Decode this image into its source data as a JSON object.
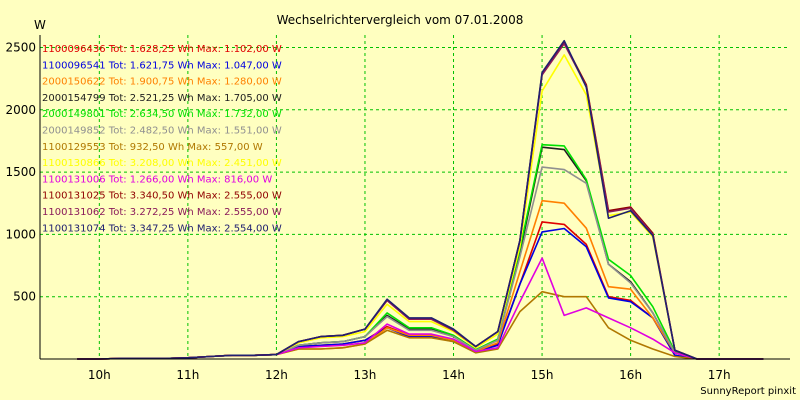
{
  "chart_data": {
    "type": "line",
    "title": "Wechselrichtervergleich vom 07.01.2008",
    "ylabel": "W",
    "xlabel": "",
    "footer": "SunnyReport pinxit",
    "x_ticks": [
      "10h",
      "11h",
      "12h",
      "13h",
      "14h",
      "15h",
      "16h",
      "17h"
    ],
    "y_ticks": [
      500,
      1000,
      1500,
      2000,
      2500
    ],
    "ylim": [
      0,
      2600
    ],
    "x_range_hours": [
      9.33,
      17.8
    ],
    "grid": true,
    "legend_position": "top-left",
    "x": [
      9.75,
      10.0,
      10.25,
      10.5,
      10.75,
      11.0,
      11.25,
      11.5,
      11.75,
      12.0,
      12.25,
      12.5,
      12.75,
      13.0,
      13.25,
      13.5,
      13.75,
      14.0,
      14.25,
      14.5,
      14.75,
      15.0,
      15.25,
      15.5,
      15.75,
      16.0,
      16.25,
      16.5,
      16.75,
      17.0,
      17.25,
      17.5
    ],
    "series": [
      {
        "name": "1100096436",
        "tot": "Tot: 1.628,25 Wh",
        "max": "Max: 1.102,00 W",
        "color": "#e00000",
        "values": [
          0,
          0,
          5,
          5,
          5,
          10,
          20,
          30,
          30,
          35,
          100,
          110,
          120,
          150,
          260,
          190,
          190,
          150,
          60,
          120,
          600,
          1100,
          1080,
          920,
          500,
          470,
          330,
          30,
          0,
          0,
          0,
          0
        ]
      },
      {
        "name": "1100096541",
        "tot": "Tot: 1.621,75 Wh",
        "max": "Max: 1.047,00 W",
        "color": "#0000e0",
        "values": [
          0,
          0,
          5,
          5,
          5,
          10,
          20,
          30,
          30,
          35,
          100,
          110,
          120,
          150,
          250,
          180,
          180,
          140,
          60,
          110,
          600,
          1020,
          1047,
          900,
          490,
          460,
          330,
          30,
          0,
          0,
          0,
          0
        ]
      },
      {
        "name": "2000150622",
        "tot": "Tot: 1.900,75 Wh",
        "max": "Max: 1.280,00 W",
        "color": "#ff8000",
        "values": [
          0,
          0,
          5,
          5,
          5,
          10,
          20,
          30,
          30,
          35,
          80,
          80,
          90,
          120,
          250,
          190,
          190,
          150,
          60,
          130,
          700,
          1270,
          1250,
          1050,
          580,
          560,
          330,
          50,
          0,
          0,
          0,
          0
        ]
      },
      {
        "name": "2000154799",
        "tot": "Tot: 2.521,25 Wh",
        "max": "Max: 1.705,00 W",
        "color": "#202020",
        "values": [
          0,
          0,
          5,
          5,
          5,
          10,
          20,
          30,
          30,
          35,
          110,
          130,
          140,
          180,
          350,
          240,
          240,
          180,
          70,
          150,
          850,
          1700,
          1680,
          1430,
          760,
          620,
          370,
          50,
          0,
          0,
          0,
          0
        ]
      },
      {
        "name": "2000149801",
        "tot": "Tot: 2.634,50 Wh",
        "max": "Max: 1.732,00 W",
        "color": "#00e000",
        "values": [
          0,
          0,
          5,
          5,
          5,
          10,
          20,
          30,
          30,
          35,
          110,
          130,
          140,
          180,
          370,
          250,
          250,
          190,
          75,
          160,
          880,
          1720,
          1710,
          1440,
          800,
          670,
          420,
          60,
          0,
          0,
          0,
          0
        ]
      },
      {
        "name": "2000149852",
        "tot": "Tot: 2.482,50 Wh",
        "max": "Max: 1.551,00 W",
        "color": "#909090",
        "values": [
          0,
          0,
          5,
          5,
          5,
          10,
          20,
          30,
          30,
          35,
          110,
          130,
          140,
          180,
          340,
          230,
          230,
          180,
          70,
          150,
          820,
          1540,
          1520,
          1410,
          760,
          610,
          370,
          50,
          0,
          0,
          0,
          0
        ]
      },
      {
        "name": "1100129553",
        "tot": "Tot: 932,50 Wh",
        "max": "Max: 557,00 W",
        "color": "#b07800",
        "values": [
          0,
          0,
          5,
          5,
          5,
          10,
          20,
          30,
          30,
          35,
          80,
          80,
          90,
          120,
          230,
          170,
          170,
          140,
          50,
          80,
          380,
          540,
          500,
          500,
          250,
          150,
          80,
          20,
          0,
          0,
          0,
          0
        ]
      },
      {
        "name": "1100130866",
        "tot": "Tot: 3.208,00 Wh",
        "max": "Max: 2.451,00 W",
        "color": "#ffff00",
        "values": [
          0,
          0,
          5,
          5,
          5,
          10,
          20,
          30,
          30,
          35,
          130,
          170,
          180,
          220,
          440,
          300,
          300,
          220,
          90,
          200,
          900,
          2150,
          2440,
          2120,
          1150,
          1180,
          980,
          70,
          0,
          0,
          0,
          0
        ]
      },
      {
        "name": "1100131006",
        "tot": "Tot: 1.266,00 Wh",
        "max": "Max: 816,00 W",
        "color": "#e000e0",
        "values": [
          0,
          0,
          5,
          5,
          5,
          10,
          20,
          30,
          30,
          35,
          90,
          100,
          110,
          130,
          280,
          200,
          200,
          160,
          60,
          90,
          460,
          810,
          350,
          410,
          330,
          250,
          160,
          50,
          0,
          0,
          0,
          0
        ]
      },
      {
        "name": "1100131025",
        "tot": "Tot: 3.340,50 Wh",
        "max": "Max: 2.555,00 W",
        "color": "#900000",
        "values": [
          0,
          0,
          5,
          5,
          5,
          10,
          20,
          30,
          30,
          35,
          140,
          180,
          190,
          240,
          470,
          320,
          320,
          230,
          100,
          220,
          950,
          2290,
          2540,
          2200,
          1190,
          1220,
          1010,
          70,
          0,
          0,
          0,
          0
        ]
      },
      {
        "name": "1100131062",
        "tot": "Tot: 3.272,25 Wh",
        "max": "Max: 2.555,00 W",
        "color": "#8a1a5a",
        "values": [
          0,
          0,
          5,
          5,
          5,
          10,
          20,
          30,
          30,
          35,
          140,
          180,
          190,
          240,
          470,
          320,
          320,
          230,
          100,
          220,
          950,
          2280,
          2530,
          2190,
          1180,
          1210,
          1000,
          70,
          0,
          0,
          0,
          0
        ]
      },
      {
        "name": "1100131074",
        "tot": "Tot: 3.347,25 Wh",
        "max": "Max: 2.554,00 W",
        "color": "#202070",
        "values": [
          0,
          0,
          5,
          5,
          5,
          10,
          20,
          30,
          30,
          35,
          140,
          180,
          190,
          240,
          480,
          330,
          330,
          240,
          100,
          220,
          950,
          2300,
          2554,
          2180,
          1130,
          1190,
          990,
          70,
          0,
          0,
          0,
          0
        ]
      }
    ]
  }
}
